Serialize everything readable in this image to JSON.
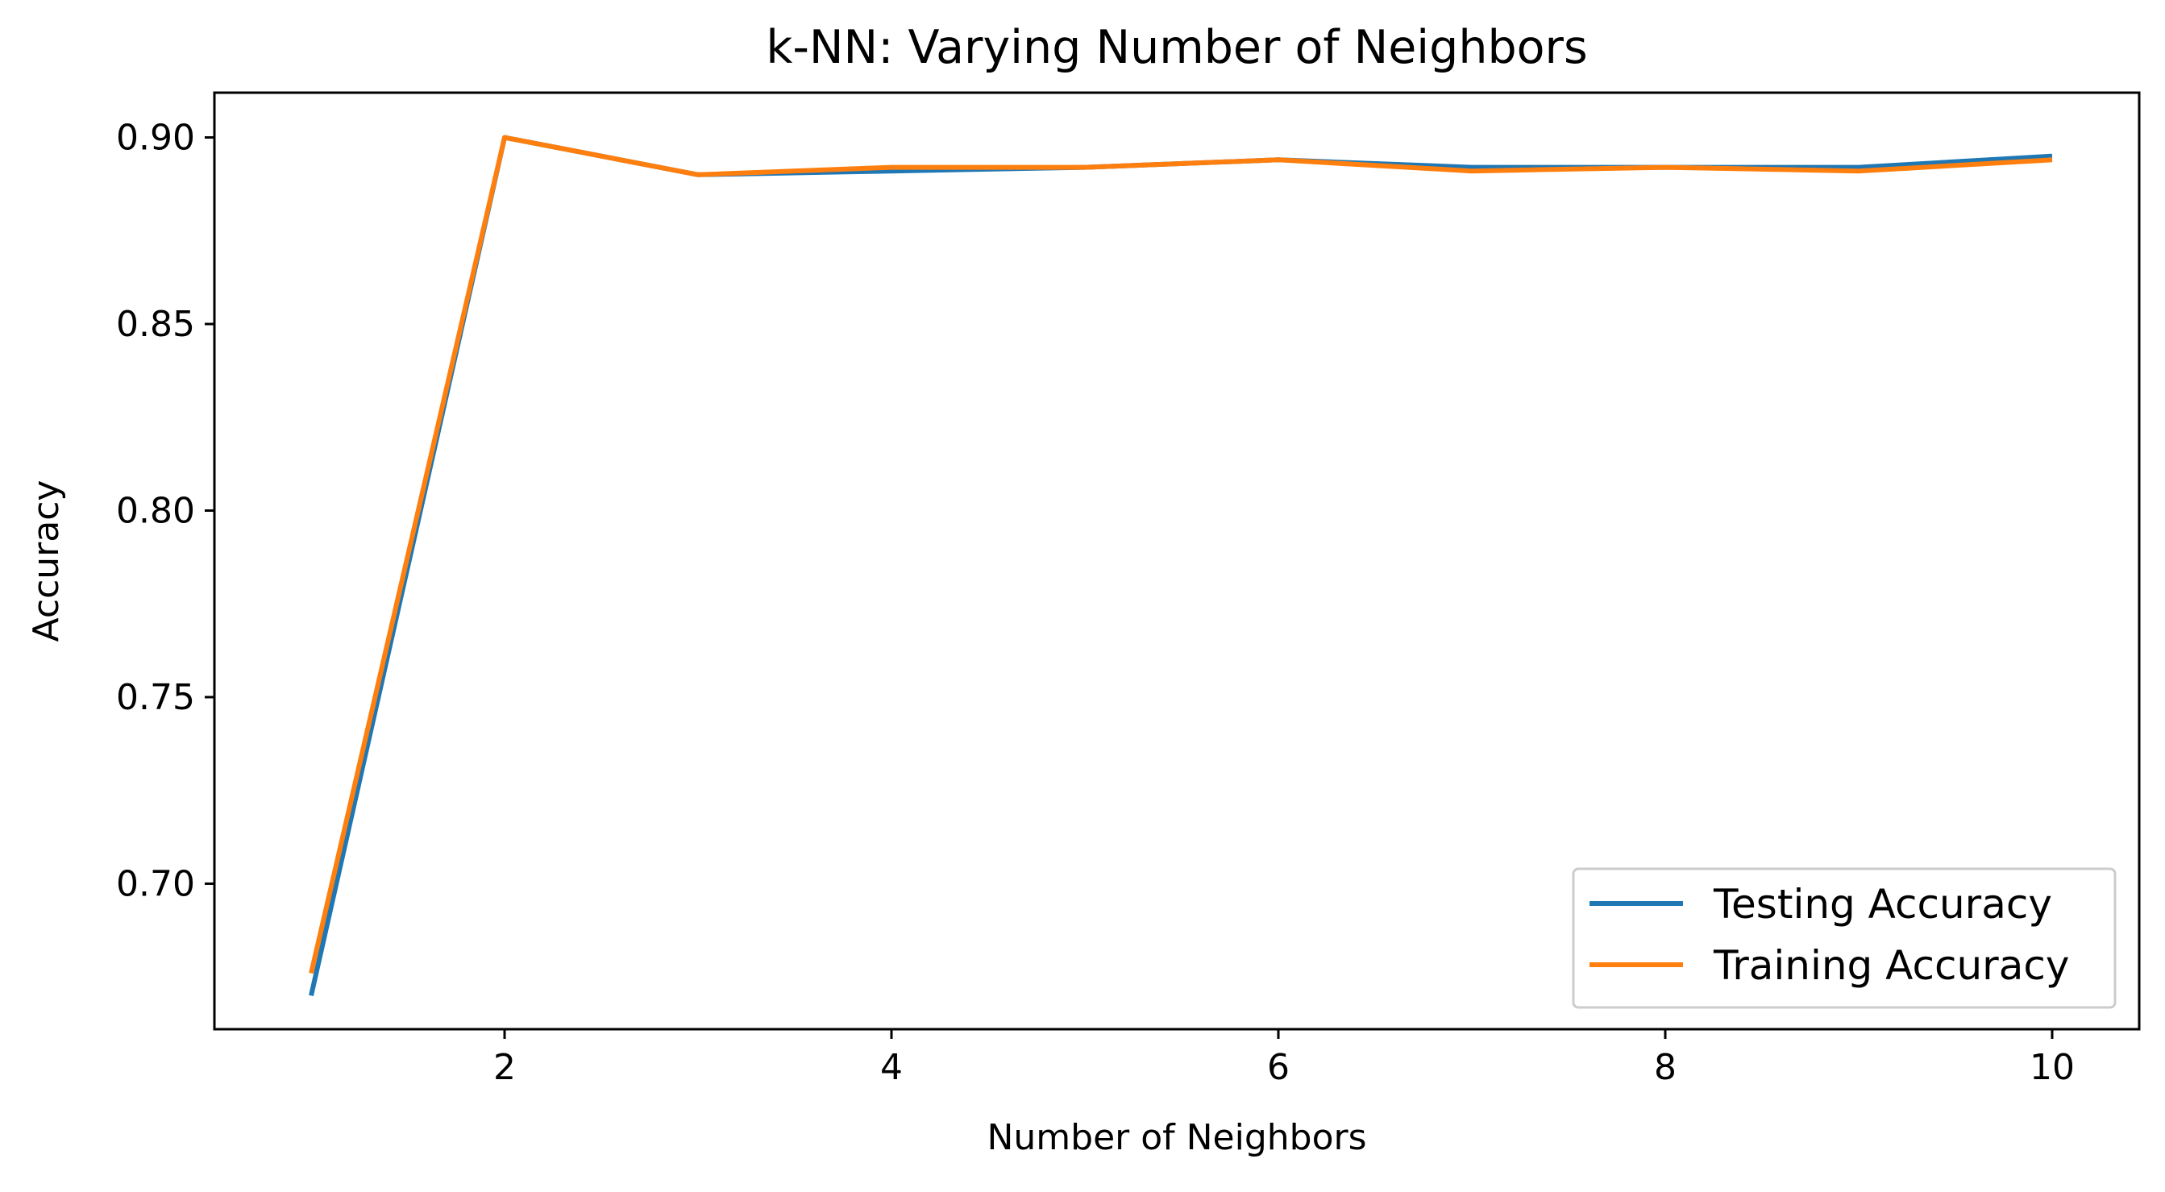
{
  "chart_data": {
    "type": "line",
    "title": "k-NN: Varying Number of Neighbors",
    "xlabel": "Number of Neighbors",
    "ylabel": "Accuracy",
    "x": [
      1,
      2,
      3,
      4,
      5,
      6,
      7,
      8,
      9,
      10
    ],
    "xlim": [
      0.5,
      10.45
    ],
    "ylim": [
      0.661,
      0.912
    ],
    "xticks": [
      2,
      4,
      6,
      8,
      10
    ],
    "xtick_labels": [
      "2",
      "4",
      "6",
      "8",
      "10"
    ],
    "yticks": [
      0.7,
      0.75,
      0.8,
      0.85,
      0.9
    ],
    "ytick_labels": [
      "0.70",
      "0.75",
      "0.80",
      "0.85",
      "0.90"
    ],
    "grid": false,
    "legend_position": "lower-right",
    "series": [
      {
        "name": "Testing Accuracy",
        "color": "#1f77b4",
        "values": [
          0.67,
          0.9,
          0.89,
          0.891,
          0.892,
          0.894,
          0.892,
          0.892,
          0.892,
          0.895
        ]
      },
      {
        "name": "Training Accuracy",
        "color": "#ff7f0e",
        "values": [
          0.676,
          0.9,
          0.89,
          0.892,
          0.892,
          0.894,
          0.891,
          0.892,
          0.891,
          0.894
        ]
      }
    ]
  }
}
